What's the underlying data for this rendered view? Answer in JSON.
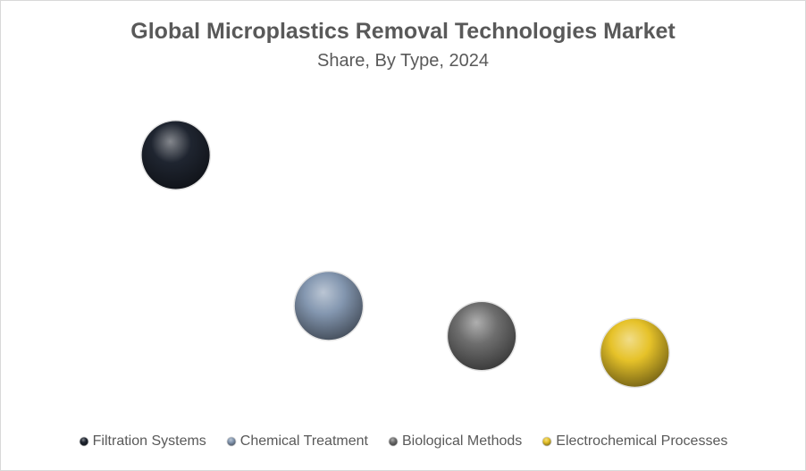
{
  "chart_data": {
    "type": "scatter",
    "title": "Global Microplastics Removal Technologies Market",
    "subtitle": "Share, By Type, 2024",
    "xlabel": "",
    "ylabel": "",
    "categories": [
      "Filtration Systems",
      "Chemical Treatment",
      "Biological Methods",
      "Electrochemical Processes"
    ],
    "series": [
      {
        "name": "Filtration Systems",
        "x": 1,
        "y": 0.78,
        "color": "#1f2530"
      },
      {
        "name": "Chemical Treatment",
        "x": 2,
        "y": 0.33,
        "color": "#8497b0"
      },
      {
        "name": "Biological Methods",
        "x": 3,
        "y": 0.24,
        "color": "#6e6e6e"
      },
      {
        "name": "Electrochemical Processes",
        "x": 4,
        "y": 0.19,
        "color": "#e6c229"
      }
    ],
    "xlim": [
      0.5,
      4.5
    ],
    "ylim": [
      0,
      1
    ],
    "grid": false,
    "axes_visible": false,
    "legend_position": "bottom"
  }
}
